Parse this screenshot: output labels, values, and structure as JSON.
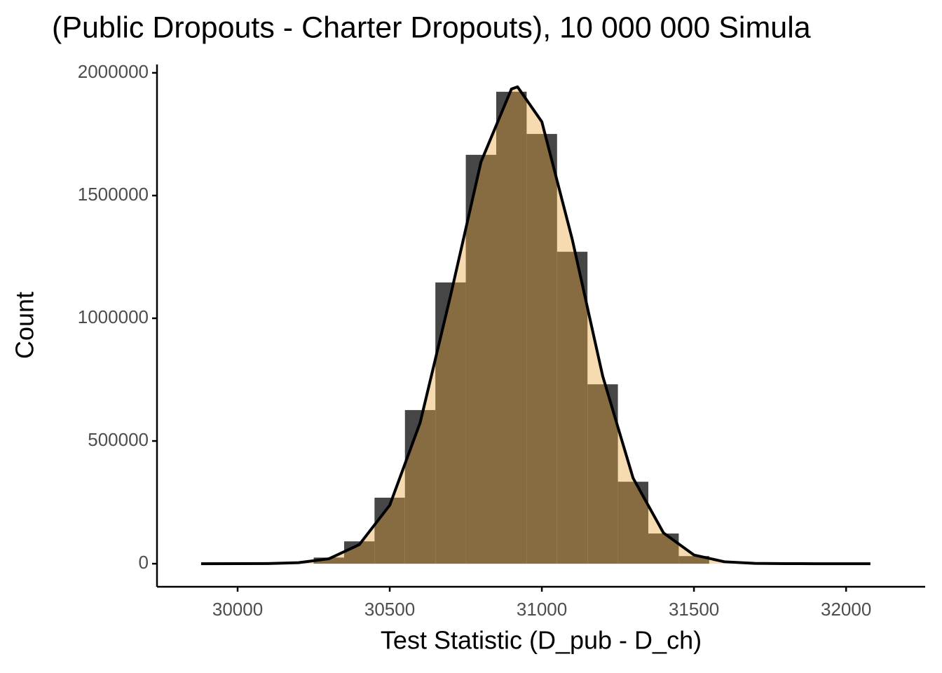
{
  "chart_data": {
    "type": "histogram",
    "title": "(Public Dropouts - Charter Dropouts), 10 000 000 Simula",
    "x_label": "Test Statistic (D_pub - D_ch)",
    "y_label": "Count",
    "bins": [
      30250,
      30350,
      30450,
      30550,
      30650,
      30750,
      30850,
      30950,
      31050,
      31150,
      31250,
      31350,
      31450,
      31550
    ],
    "values": [
      25000,
      91000,
      269000,
      626000,
      1146000,
      1666000,
      1923000,
      1751000,
      1271000,
      731000,
      334000,
      123000,
      31000
    ],
    "color": "#464646",
    "density": {
      "color": "#e8a33a",
      "x": [
        29880,
        30000,
        30100,
        30200,
        30300,
        30400,
        30500,
        30600,
        30700,
        30800,
        30900,
        30920,
        31000,
        31100,
        31200,
        31300,
        31400,
        31500,
        31600,
        31700,
        31800,
        31900,
        32000,
        32080
      ],
      "values": [
        5,
        82,
        651,
        4060,
        20070,
        77900,
        238200,
        574800,
        1092600,
        1637200,
        1933900,
        1943000,
        1800600,
        1321200,
        764400,
        348600,
        125300,
        35500,
        7930,
        1390,
        194,
        21,
        2,
        0
      ]
    },
    "xlim": [
      29735,
      32260
    ],
    "ylim": [
      -94000,
      2034000
    ],
    "xticks": [
      30000,
      30500,
      31000,
      31500,
      32000
    ],
    "yticks": [
      0,
      500000,
      1000000,
      1500000,
      2000000
    ]
  }
}
